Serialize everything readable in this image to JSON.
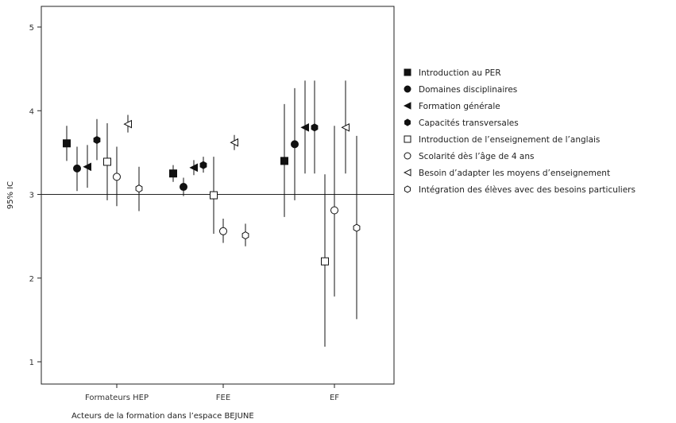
{
  "chart_data": {
    "type": "scatter",
    "subtype": "point-range (mean with 95% confidence interval)",
    "xlabel": "Acteurs de la formation dans l’espace BEJUNE",
    "ylabel": "95% IC",
    "ylim": [
      0.8,
      5.2
    ],
    "yticks": [
      1,
      2,
      3,
      4,
      5
    ],
    "reference_line_y": 3,
    "categories": [
      "Formateurs HEP",
      "FEE",
      "EF"
    ],
    "legend_position": "right",
    "series": [
      {
        "name": "Introduction au PER",
        "marker": "square-filled",
        "values": [
          3.61,
          3.25,
          3.4
        ],
        "lower": [
          3.4,
          3.15,
          2.73
        ],
        "upper": [
          3.82,
          3.35,
          4.08
        ]
      },
      {
        "name": "Domaines disciplinaires",
        "marker": "circle-filled",
        "values": [
          3.31,
          3.09,
          3.6
        ],
        "lower": [
          3.04,
          2.98,
          2.93
        ],
        "upper": [
          3.57,
          3.2,
          4.27
        ]
      },
      {
        "name": "Formation générale",
        "marker": "triangle-left-filled",
        "values": [
          3.33,
          3.32,
          3.8
        ],
        "lower": [
          3.08,
          3.23,
          3.25
        ],
        "upper": [
          3.59,
          3.41,
          4.36
        ]
      },
      {
        "name": "Capacités transversales",
        "marker": "hexagon-filled",
        "values": [
          3.65,
          3.35,
          3.8
        ],
        "lower": [
          3.41,
          3.26,
          3.25
        ],
        "upper": [
          3.9,
          3.45,
          4.36
        ]
      },
      {
        "name": "Introduction de l’enseignement de l’anglais",
        "marker": "square-open",
        "values": [
          3.39,
          2.99,
          2.2
        ],
        "lower": [
          2.93,
          2.53,
          1.18
        ],
        "upper": [
          3.85,
          3.45,
          3.24
        ]
      },
      {
        "name": "Scolarité dès l’âge de 4 ans",
        "marker": "circle-open",
        "values": [
          3.21,
          2.56,
          2.81
        ],
        "lower": [
          2.86,
          2.42,
          1.78
        ],
        "upper": [
          3.57,
          2.71,
          3.82
        ]
      },
      {
        "name": "Besoin d’adapter les moyens d’enseignement",
        "marker": "triangle-left-open",
        "values": [
          3.84,
          3.62,
          3.8
        ],
        "lower": [
          3.74,
          3.53,
          3.25
        ],
        "upper": [
          3.95,
          3.71,
          4.36
        ]
      },
      {
        "name": "Intégration des élèves avec des besoins particuliers",
        "marker": "hexagon-open",
        "values": [
          3.07,
          2.51,
          2.6
        ],
        "lower": [
          2.8,
          2.38,
          1.51
        ],
        "upper": [
          3.33,
          2.65,
          3.7
        ]
      }
    ]
  }
}
